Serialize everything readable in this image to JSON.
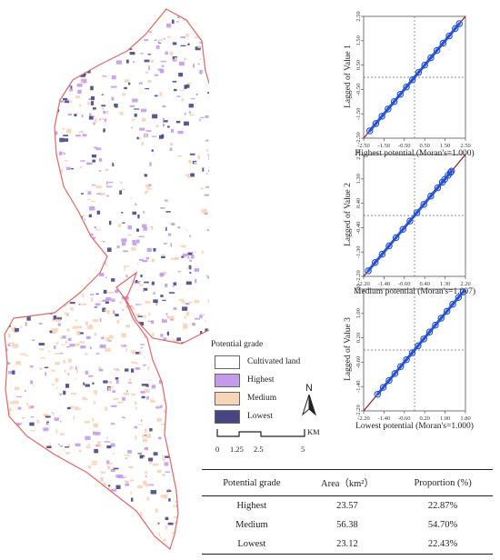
{
  "map": {
    "legend_title": "Potential grade",
    "legend_items": [
      {
        "label": "Cultivated land",
        "color": "#ffffff"
      },
      {
        "label": "Highest",
        "color": "#c49bea"
      },
      {
        "label": "Medium",
        "color": "#f8d4b8"
      },
      {
        "label": "Lowest",
        "color": "#484682"
      }
    ],
    "boundary_color": "#e06666",
    "north_label": "N",
    "scale_ticks": [
      "0",
      "1.25",
      "2.5",
      "5"
    ],
    "scale_unit": "KM"
  },
  "chart_data": [
    {
      "type": "scatter",
      "title": "",
      "xlabel": "Highest potential (Moran's=1.000)",
      "ylabel": "Lagged of Value 1",
      "xticks": [
        "-2.50",
        "-1.50",
        "-0.50",
        "0.50",
        "1.50",
        "2.50"
      ],
      "yticks": [
        "-2.50",
        "-1.50",
        "-0.50",
        "0.50",
        "1.50",
        "2.50"
      ],
      "xlim": [
        -2.5,
        2.5
      ],
      "ylim": [
        -2.5,
        2.5
      ],
      "slope": 1.0,
      "x": [
        -2.2,
        -1.9,
        -1.6,
        -1.3,
        -1.0,
        -0.7,
        -0.4,
        -0.1,
        0.2,
        0.5,
        0.8,
        1.1,
        1.4,
        1.7,
        2.0,
        2.2
      ],
      "y": [
        -2.2,
        -1.9,
        -1.6,
        -1.3,
        -1.0,
        -0.7,
        -0.4,
        -0.1,
        0.2,
        0.5,
        0.8,
        1.1,
        1.4,
        1.7,
        2.0,
        2.2
      ]
    },
    {
      "type": "scatter",
      "title": "",
      "xlabel": "Medium potential (Moran's=1.007)",
      "ylabel": "Lagged of Value 2",
      "xticks": [
        "-2.20",
        "-1.40",
        "-0.60",
        "0.40",
        "1.30",
        "2.20"
      ],
      "yticks": [
        "-2.20",
        "-1.30",
        "-0.40",
        "0.40",
        "1.30",
        "2.20"
      ],
      "xlim": [
        -2.2,
        2.2
      ],
      "ylim": [
        -2.2,
        2.2
      ],
      "slope": 1.007,
      "x": [
        -2.0,
        -1.7,
        -1.4,
        -1.1,
        -0.8,
        -0.5,
        -0.2,
        0.1,
        0.4,
        0.7,
        1.0,
        1.2,
        1.3,
        1.45,
        1.55,
        1.6
      ],
      "y": [
        -2.0,
        -1.7,
        -1.4,
        -1.1,
        -0.8,
        -0.5,
        -0.2,
        0.1,
        0.4,
        0.7,
        1.0,
        1.2,
        1.3,
        1.45,
        1.55,
        1.6
      ]
    },
    {
      "type": "scatter",
      "title": "",
      "xlabel": "Lowest potential (Moran's=1.000)",
      "ylabel": "Lagged of Value 3",
      "xticks": [
        "-2.20",
        "-1.40",
        "-0.60",
        "0.20",
        "1.00",
        "1.80"
      ],
      "yticks": [
        "-2.20",
        "-1.40",
        "-0.60",
        "0.20",
        "1.00",
        "1.80"
      ],
      "xlim": [
        -2.2,
        2.2
      ],
      "ylim": [
        -2.2,
        2.2
      ],
      "slope": 1.0,
      "x": [
        -1.6,
        -1.35,
        -1.1,
        -0.85,
        -0.6,
        -0.35,
        -0.1,
        0.15,
        0.4,
        0.65,
        0.9,
        1.15,
        1.4,
        1.65,
        1.9,
        2.1
      ],
      "y": [
        -1.6,
        -1.35,
        -1.1,
        -0.85,
        -0.6,
        -0.35,
        -0.1,
        0.15,
        0.4,
        0.65,
        0.9,
        1.15,
        1.4,
        1.65,
        1.9,
        2.1
      ]
    }
  ],
  "table": {
    "headers": [
      "Potential grade",
      "Area（km²）",
      "Proportion (%)"
    ],
    "rows": [
      [
        "Highest",
        "23.57",
        "22.87%"
      ],
      [
        "Medium",
        "56.38",
        "54.70%"
      ],
      [
        "Lowest",
        "23.12",
        "22.43%"
      ]
    ]
  }
}
